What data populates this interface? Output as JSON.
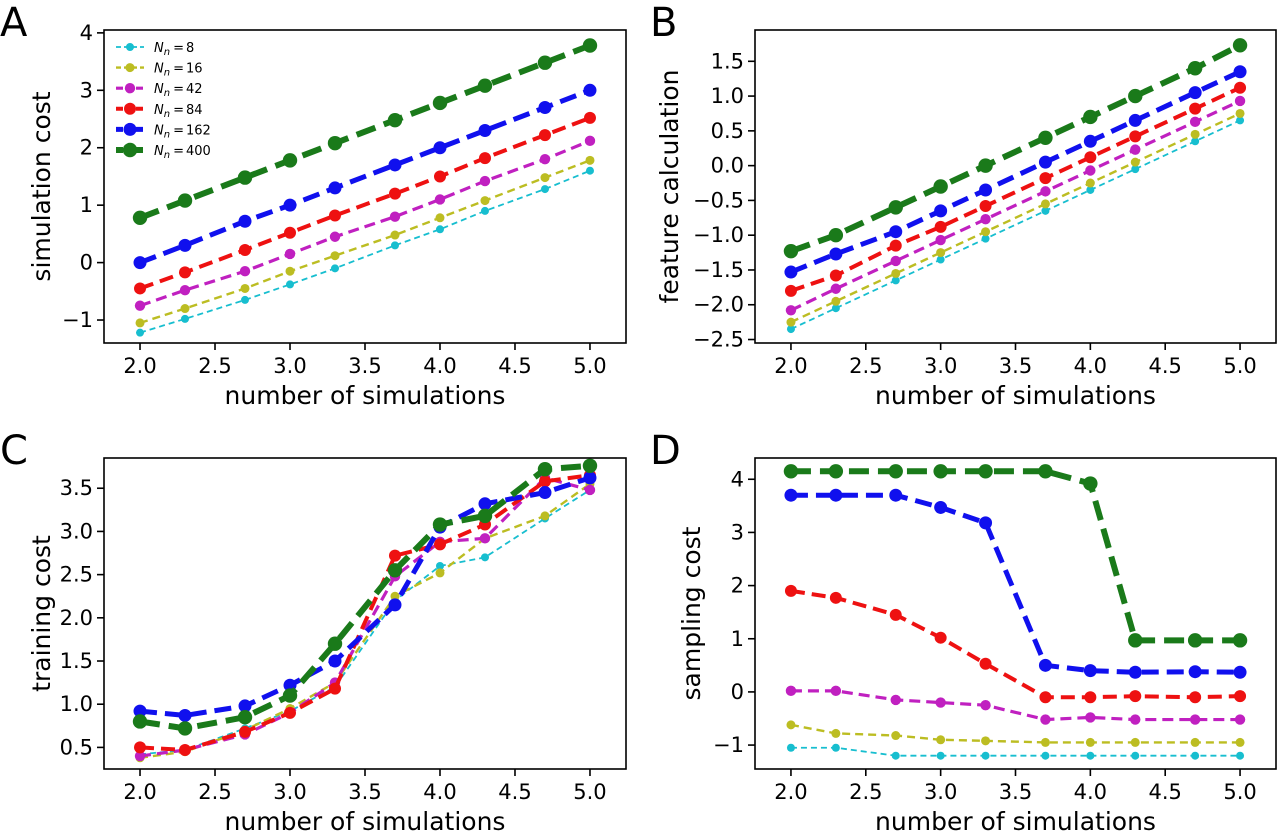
{
  "legend": {
    "entries": [
      {
        "var": "N",
        "sub": "n",
        "eq": "=",
        "value": "8"
      },
      {
        "var": "N",
        "sub": "n",
        "eq": "=",
        "value": "16"
      },
      {
        "var": "N",
        "sub": "n",
        "eq": "=",
        "value": "42"
      },
      {
        "var": "N",
        "sub": "n",
        "eq": "=",
        "value": "84"
      },
      {
        "var": "N",
        "sub": "n",
        "eq": "=",
        "value": "162"
      },
      {
        "var": "N",
        "sub": "n",
        "eq": "=",
        "value": "400"
      }
    ],
    "placement": "upper-left of panel A"
  },
  "series_colors": [
    "#17becf",
    "#bcbd22",
    "#c020c0",
    "#ee1111",
    "#1010ee",
    "#1a7a1a"
  ],
  "chart_data": [
    {
      "panel": "A",
      "type": "line",
      "xlabel": "number of simulations",
      "ylabel": "simulation cost",
      "xlim": [
        2.0,
        5.0
      ],
      "ylim": [
        -1.4,
        4.05
      ],
      "xticks": [
        "2.0",
        "2.5",
        "3.0",
        "3.5",
        "4.0",
        "4.5",
        "5.0"
      ],
      "yticks": [
        -1,
        0,
        1,
        2,
        3,
        4
      ],
      "x": [
        2.0,
        2.3,
        2.7,
        3.0,
        3.3,
        3.7,
        4.0,
        4.3,
        4.7,
        5.0
      ],
      "series": [
        {
          "values": [
            -1.22,
            -0.98,
            -0.65,
            -0.38,
            -0.1,
            0.3,
            0.58,
            0.9,
            1.28,
            1.6
          ]
        },
        {
          "values": [
            -1.05,
            -0.8,
            -0.45,
            -0.15,
            0.12,
            0.48,
            0.78,
            1.08,
            1.48,
            1.78
          ]
        },
        {
          "values": [
            -0.75,
            -0.48,
            -0.15,
            0.15,
            0.45,
            0.8,
            1.1,
            1.42,
            1.8,
            2.12
          ]
        },
        {
          "values": [
            -0.45,
            -0.17,
            0.22,
            0.52,
            0.82,
            1.2,
            1.5,
            1.82,
            2.22,
            2.52
          ]
        },
        {
          "values": [
            0.0,
            0.3,
            0.72,
            1.0,
            1.3,
            1.7,
            2.0,
            2.3,
            2.7,
            3.0
          ]
        },
        {
          "values": [
            0.78,
            1.08,
            1.48,
            1.78,
            2.08,
            2.48,
            2.78,
            3.08,
            3.48,
            3.78
          ]
        }
      ]
    },
    {
      "panel": "B",
      "type": "line",
      "xlabel": "number of simulations",
      "ylabel": "feature calculation",
      "xlim": [
        2.0,
        5.0
      ],
      "ylim": [
        -2.55,
        1.95
      ],
      "xticks": [
        "2.0",
        "2.5",
        "3.0",
        "3.5",
        "4.0",
        "4.5",
        "5.0"
      ],
      "yticks": [
        "−2.5",
        "−2.0",
        "−1.5",
        "−1.0",
        "−0.5",
        "0.0",
        "0.5",
        "1.0",
        "1.5"
      ],
      "x": [
        2.0,
        2.3,
        2.7,
        3.0,
        3.3,
        3.7,
        4.0,
        4.3,
        4.7,
        5.0
      ],
      "series": [
        {
          "values": [
            -2.35,
            -2.05,
            -1.65,
            -1.35,
            -1.05,
            -0.65,
            -0.35,
            -0.05,
            0.35,
            0.65
          ]
        },
        {
          "values": [
            -2.25,
            -1.95,
            -1.55,
            -1.25,
            -0.95,
            -0.55,
            -0.25,
            0.05,
            0.45,
            0.75
          ]
        },
        {
          "values": [
            -2.08,
            -1.77,
            -1.37,
            -1.07,
            -0.77,
            -0.37,
            -0.07,
            0.23,
            0.63,
            0.93
          ]
        },
        {
          "values": [
            -1.8,
            -1.58,
            -1.15,
            -0.88,
            -0.58,
            -0.18,
            0.12,
            0.42,
            0.82,
            1.12
          ]
        },
        {
          "values": [
            -1.53,
            -1.27,
            -0.95,
            -0.65,
            -0.35,
            0.05,
            0.35,
            0.65,
            1.05,
            1.35
          ]
        },
        {
          "values": [
            -1.23,
            -1.0,
            -0.6,
            -0.3,
            0.0,
            0.4,
            0.7,
            1.0,
            1.4,
            1.73
          ]
        }
      ]
    },
    {
      "panel": "C",
      "type": "line",
      "xlabel": "number of simulations",
      "ylabel": "training cost",
      "xlim": [
        2.0,
        5.0
      ],
      "ylim": [
        0.25,
        3.85
      ],
      "xticks": [
        "2.0",
        "2.5",
        "3.0",
        "3.5",
        "4.0",
        "4.5",
        "5.0"
      ],
      "yticks": [
        "0.5",
        "1.0",
        "1.5",
        "2.0",
        "2.5",
        "3.0",
        "3.5"
      ],
      "x": [
        2.0,
        2.3,
        2.7,
        3.0,
        3.3,
        3.7,
        4.0,
        4.3,
        4.7,
        5.0
      ],
      "series": [
        {
          "values": [
            0.42,
            0.47,
            0.72,
            0.92,
            1.2,
            2.2,
            2.6,
            2.7,
            3.15,
            3.48
          ]
        },
        {
          "values": [
            0.38,
            0.45,
            0.7,
            0.95,
            1.25,
            2.25,
            2.52,
            2.92,
            3.18,
            3.55
          ]
        },
        {
          "values": [
            0.4,
            0.47,
            0.65,
            0.9,
            1.25,
            2.48,
            2.88,
            2.92,
            3.62,
            3.48
          ]
        },
        {
          "values": [
            0.5,
            0.47,
            0.68,
            0.9,
            1.18,
            2.72,
            2.85,
            3.08,
            3.58,
            3.65
          ]
        },
        {
          "values": [
            0.92,
            0.87,
            0.98,
            1.22,
            1.5,
            2.15,
            3.05,
            3.32,
            3.45,
            3.62
          ]
        },
        {
          "values": [
            0.8,
            0.72,
            0.85,
            1.1,
            1.7,
            2.55,
            3.08,
            3.18,
            3.72,
            3.76
          ]
        }
      ]
    },
    {
      "panel": "D",
      "type": "line",
      "xlabel": "number of simulations",
      "ylabel": "sampling cost",
      "xlim": [
        2.0,
        5.0
      ],
      "ylim": [
        -1.45,
        4.4
      ],
      "xticks": [
        "2.0",
        "2.5",
        "3.0",
        "3.5",
        "4.0",
        "4.5",
        "5.0"
      ],
      "yticks": [
        -1,
        0,
        1,
        2,
        3,
        4
      ],
      "x": [
        2.0,
        2.3,
        2.7,
        3.0,
        3.3,
        3.7,
        4.0,
        4.3,
        4.7,
        5.0
      ],
      "series": [
        {
          "values": [
            -1.05,
            -1.05,
            -1.2,
            -1.2,
            -1.2,
            -1.2,
            -1.2,
            -1.2,
            -1.2,
            -1.2
          ]
        },
        {
          "values": [
            -0.62,
            -0.78,
            -0.82,
            -0.9,
            -0.92,
            -0.95,
            -0.95,
            -0.95,
            -0.95,
            -0.95
          ]
        },
        {
          "values": [
            0.02,
            0.02,
            -0.15,
            -0.2,
            -0.25,
            -0.52,
            -0.48,
            -0.52,
            -0.52,
            -0.52
          ]
        },
        {
          "values": [
            1.9,
            1.77,
            1.45,
            1.02,
            0.53,
            -0.1,
            -0.1,
            -0.08,
            -0.1,
            -0.08
          ]
        },
        {
          "values": [
            3.7,
            3.7,
            3.7,
            3.47,
            3.18,
            0.5,
            0.4,
            0.37,
            0.38,
            0.37
          ]
        },
        {
          "values": [
            4.15,
            4.15,
            4.15,
            4.15,
            4.15,
            4.15,
            3.92,
            0.97,
            0.97,
            0.97
          ]
        }
      ]
    }
  ]
}
